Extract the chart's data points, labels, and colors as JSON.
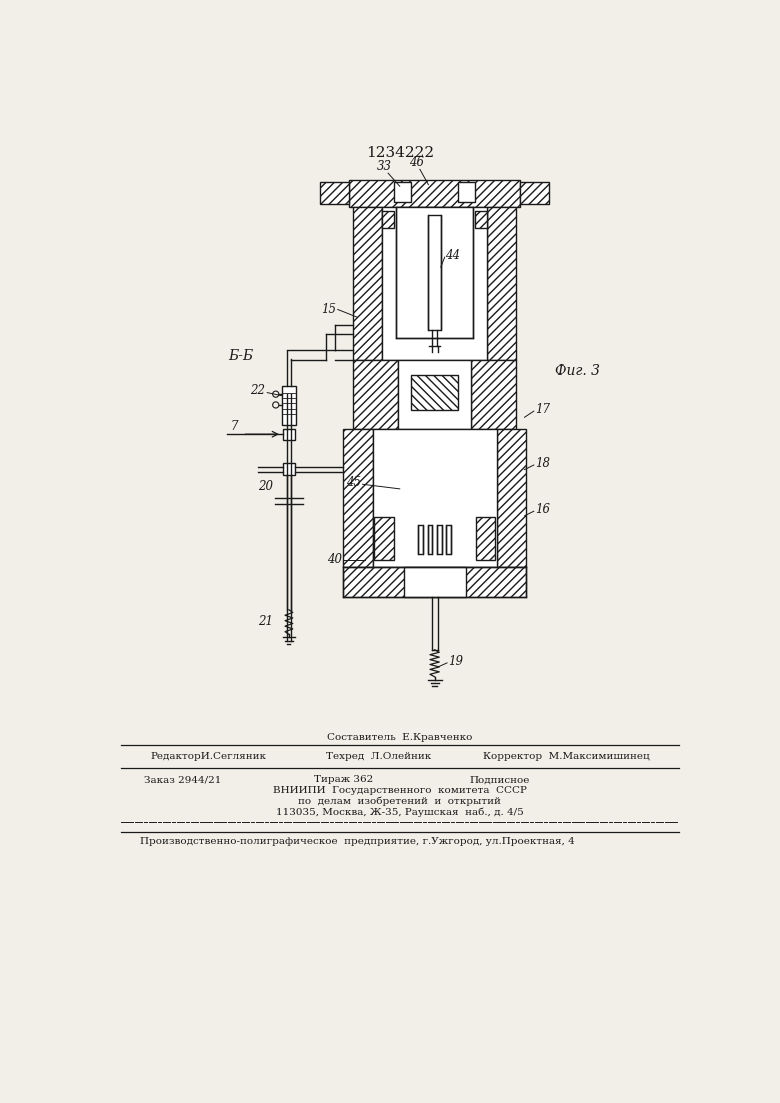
{
  "title": "1234222",
  "bg_color": "#f2efe8",
  "lc": "#1a1a1a",
  "fig_label": "Фиг. 3",
  "section_label": "Б-Б",
  "label_fontsize": 8.5,
  "footer_composer": "Составитель  Е.Кравченко",
  "footer_editor": "РедакторИ.Сегляник",
  "footer_techred": "Техред  Л.Олейник",
  "footer_corrector": "Корректор  М.Максимишинец",
  "footer_order": "Заказ 2944/21",
  "footer_tirazh": "Тираж 362",
  "footer_podpisnoe": "Подписное",
  "footer_vniip1": "ВНИИПИ  Государственного  комитета  СССР",
  "footer_vniip2": "по  делам  изобретений  и  открытий",
  "footer_addr": "113035, Москва, Ж-35, Раушская  наб., д. 4/5",
  "footer_prod": "Производственно-полиграфическое  предприятие, г.Ужгород, ул.Проектная, 4"
}
